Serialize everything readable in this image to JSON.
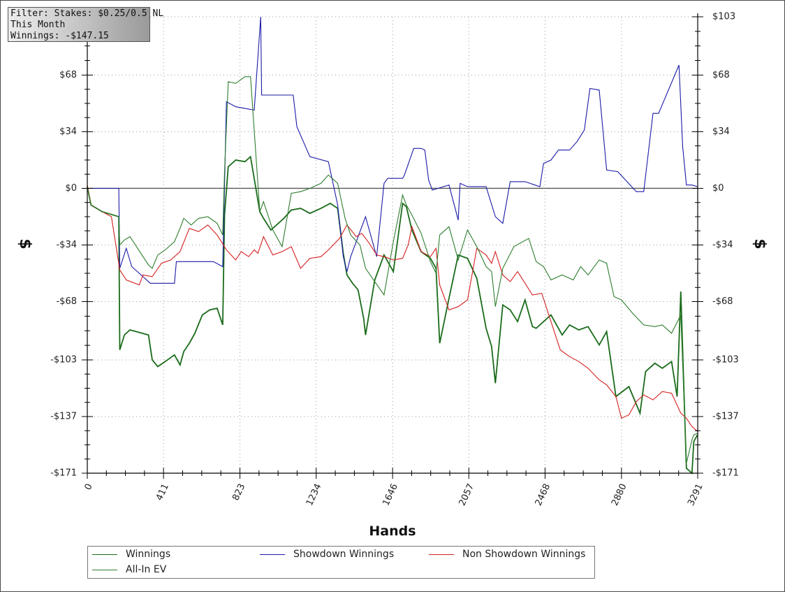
{
  "filter_box": {
    "line1": "Filter: Stakes: $0.25/0.5 NL",
    "line2": "This Month",
    "line3": "Winnings: -$147.15"
  },
  "legend": {
    "items": [
      {
        "label": "Winnings",
        "color": "#1a6b1a"
      },
      {
        "label": "Showdown Winnings",
        "color": "#1a1aa8"
      },
      {
        "label": "Non Showdown Winnings",
        "color": "#d42020"
      },
      {
        "label": "All-In EV",
        "color": "#2e7d2e"
      }
    ]
  },
  "chart_data": {
    "type": "line",
    "xlabel": "Hands",
    "ylabel": "$",
    "ylabel_right": "$",
    "xlim": [
      0,
      3291
    ],
    "ylim": [
      -171,
      103
    ],
    "x_ticks": [
      0,
      411,
      823,
      1234,
      1646,
      2057,
      2468,
      2880,
      3291
    ],
    "x_tick_labels": [
      "0",
      "411",
      "823",
      "1234",
      "1646",
      "2057",
      "2468",
      "2880",
      "3291"
    ],
    "y_ticks": [
      103,
      68,
      34,
      0,
      -34,
      -68,
      -103,
      -137,
      -171
    ],
    "y_tick_labels": [
      "$103",
      "$68",
      "$34",
      "$0",
      "-$34",
      "-$68",
      "-$103",
      "-$137",
      "-$171"
    ],
    "grid": true,
    "legend_position": "bottom",
    "series": [
      {
        "name": "Winnings",
        "color": "#1a6b1a",
        "x": [
          0,
          20,
          80,
          170,
          175,
          200,
          230,
          330,
          350,
          380,
          420,
          470,
          500,
          520,
          550,
          580,
          620,
          660,
          700,
          730,
          740,
          760,
          800,
          850,
          880,
          930,
          950,
          990,
          1060,
          1100,
          1150,
          1200,
          1260,
          1310,
          1350,
          1380,
          1400,
          1430,
          1460,
          1490,
          1500,
          1550,
          1600,
          1650,
          1700,
          1720,
          1750,
          1800,
          1850,
          1880,
          1900,
          1950,
          2000,
          2050,
          2100,
          2150,
          2180,
          2200,
          2240,
          2280,
          2320,
          2360,
          2400,
          2420,
          2500,
          2560,
          2600,
          2650,
          2700,
          2760,
          2800,
          2850,
          2920,
          2980,
          3010,
          3060,
          3100,
          3150,
          3180,
          3200,
          3230,
          3260,
          3270,
          3290
        ],
        "y": [
          1,
          -10,
          -14,
          -17,
          -97,
          -88,
          -85,
          -88,
          -103,
          -107,
          -104,
          -100,
          -106,
          -98,
          -93,
          -87,
          -76,
          -73,
          -72,
          -82,
          -16,
          13,
          17,
          16,
          19,
          -14,
          -18,
          -25,
          -18,
          -13,
          -12,
          -15,
          -12,
          -9,
          -12,
          -39,
          -52,
          -57,
          -61,
          -78,
          -88,
          -55,
          -40,
          -50,
          -9,
          -11,
          -25,
          -38,
          -42,
          -48,
          -93,
          -66,
          -40,
          -42,
          -54,
          -84,
          -95,
          -117,
          -70,
          -73,
          -80,
          -67,
          -83,
          -84,
          -76,
          -88,
          -82,
          -85,
          -83,
          -94,
          -86,
          -125,
          -119,
          -135,
          -110,
          -105,
          -108,
          -104,
          -125,
          -62,
          -168,
          -171,
          -152,
          -148
        ]
      },
      {
        "name": "Showdown Winnings",
        "color": "#1a1aa8",
        "x": [
          0,
          20,
          170,
          175,
          210,
          240,
          340,
          400,
          470,
          480,
          600,
          680,
          730,
          750,
          800,
          850,
          900,
          935,
          940,
          1000,
          1050,
          1110,
          1130,
          1200,
          1300,
          1350,
          1380,
          1400,
          1420,
          1500,
          1560,
          1600,
          1620,
          1660,
          1700,
          1710,
          1760,
          1800,
          1820,
          1840,
          1860,
          1950,
          2000,
          2010,
          2050,
          2150,
          2200,
          2240,
          2280,
          2360,
          2440,
          2460,
          2500,
          2540,
          2600,
          2640,
          2680,
          2710,
          2760,
          2800,
          2860,
          2960,
          3000,
          3050,
          3080,
          3190,
          3210,
          3230,
          3260,
          3291
        ],
        "y": [
          0,
          0,
          0,
          -48,
          -36,
          -47,
          -57,
          -57,
          -57,
          -44,
          -44,
          -44,
          -47,
          52,
          49,
          48,
          47,
          103,
          56,
          56,
          56,
          56,
          37,
          19,
          16,
          -10,
          -41,
          -50,
          -41,
          -17,
          -41,
          3,
          6,
          6,
          6,
          8,
          24,
          24,
          23,
          5,
          -1,
          2,
          -19,
          3,
          1,
          1,
          -17,
          -21,
          4,
          4,
          1,
          15,
          17,
          23,
          23,
          28,
          35,
          60,
          59,
          11,
          10,
          -2,
          -2,
          45,
          45,
          74,
          25,
          2,
          2,
          1
        ]
      },
      {
        "name": "Non Showdown Winnings",
        "color": "#d42020",
        "x": [
          0,
          20,
          80,
          130,
          175,
          210,
          280,
          300,
          350,
          400,
          450,
          500,
          550,
          600,
          650,
          700,
          750,
          800,
          830,
          870,
          900,
          920,
          950,
          1000,
          1050,
          1100,
          1150,
          1200,
          1260,
          1300,
          1360,
          1400,
          1450,
          1480,
          1520,
          1560,
          1600,
          1650,
          1700,
          1730,
          1750,
          1800,
          1850,
          1880,
          1900,
          1950,
          2000,
          2050,
          2100,
          2150,
          2180,
          2200,
          2240,
          2280,
          2320,
          2360,
          2400,
          2450,
          2500,
          2550,
          2600,
          2650,
          2700,
          2760,
          2800,
          2850,
          2880,
          2920,
          2960,
          3000,
          3050,
          3100,
          3150,
          3200,
          3230,
          3260,
          3291
        ],
        "y": [
          2,
          -10,
          -14,
          -17,
          -49,
          -55,
          -58,
          -52,
          -53,
          -45,
          -43,
          -38,
          -24,
          -26,
          -22,
          -28,
          -37,
          -43,
          -38,
          -41,
          -37,
          -39,
          -29,
          -40,
          -38,
          -35,
          -48,
          -42,
          -41,
          -37,
          -30,
          -22,
          -29,
          -27,
          -33,
          -40,
          -41,
          -43,
          -42,
          -34,
          -23,
          -38,
          -41,
          -36,
          -58,
          -73,
          -71,
          -67,
          -36,
          -40,
          -45,
          -38,
          -52,
          -56,
          -50,
          -57,
          -64,
          -63,
          -80,
          -97,
          -101,
          -104,
          -108,
          -115,
          -118,
          -125,
          -138,
          -136,
          -128,
          -124,
          -127,
          -122,
          -123,
          -135,
          -138,
          -143,
          -146
        ]
      },
      {
        "name": "All-In EV",
        "color": "#2e7d2e",
        "x": [
          0,
          20,
          80,
          170,
          175,
          200,
          230,
          330,
          350,
          380,
          420,
          470,
          500,
          520,
          560,
          600,
          650,
          700,
          730,
          740,
          760,
          800,
          850,
          880,
          930,
          950,
          1000,
          1050,
          1100,
          1150,
          1200,
          1260,
          1300,
          1350,
          1390,
          1420,
          1470,
          1500,
          1550,
          1600,
          1650,
          1700,
          1720,
          1750,
          1800,
          1850,
          1880,
          1900,
          1950,
          2000,
          2050,
          2100,
          2150,
          2180,
          2200,
          2240,
          2300,
          2380,
          2420,
          2460,
          2500,
          2560,
          2620,
          2660,
          2700,
          2760,
          2800,
          2840,
          2880,
          2940,
          3000,
          3060,
          3100,
          3150,
          3200,
          3230,
          3260,
          3270,
          3291
        ],
        "y": [
          1,
          -10,
          -14,
          -17,
          -34,
          -31,
          -29,
          -46,
          -48,
          -40,
          -37,
          -32,
          -24,
          -18,
          -22,
          -18,
          -17,
          -21,
          -28,
          10,
          64,
          63,
          67,
          67,
          -14,
          -8,
          -25,
          -35,
          -3,
          -2,
          0,
          3,
          8,
          3,
          -18,
          -28,
          -34,
          -48,
          -56,
          -64,
          -32,
          -4,
          -10,
          -16,
          -27,
          -44,
          -51,
          -28,
          -23,
          -43,
          -25,
          -35,
          -47,
          -50,
          -71,
          -48,
          -35,
          -30,
          -44,
          -47,
          -55,
          -52,
          -55,
          -47,
          -52,
          -43,
          -45,
          -65,
          -67,
          -75,
          -82,
          -83,
          -82,
          -87,
          -76,
          -165,
          -151,
          -148,
          -147
        ]
      }
    ]
  }
}
